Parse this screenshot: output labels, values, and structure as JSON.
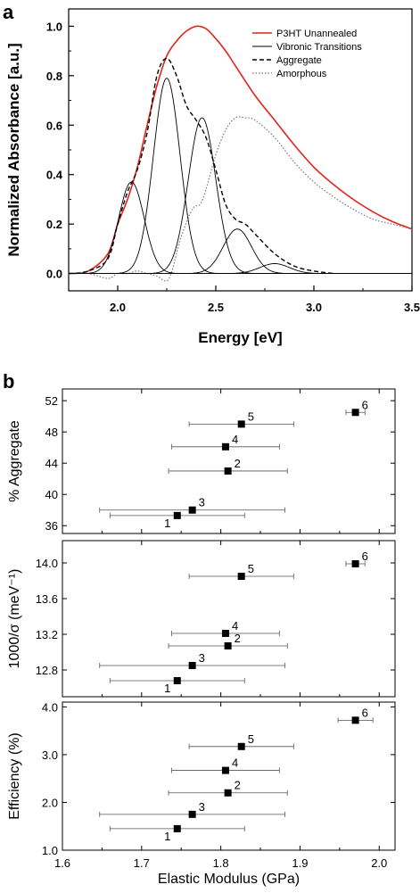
{
  "panel_labels": {
    "a": "a",
    "b": "b"
  },
  "colors": {
    "measured": "#e2231a",
    "ink": "#000000",
    "amorphous": "#777777"
  },
  "chart_data": [
    {
      "id": "a",
      "type": "line",
      "xlabel": "Energy [eV]",
      "ylabel": "Normalized Absorbance [a.u.]",
      "xlim": [
        1.75,
        3.5
      ],
      "ylim": [
        -0.07,
        1.07
      ],
      "xticks": [
        2.0,
        2.5,
        3.0,
        3.5
      ],
      "xtick_labels": [
        "2.0",
        "2.5",
        "3.0",
        "3.5"
      ],
      "yticks": [
        0.0,
        0.2,
        0.4,
        0.6,
        0.8,
        1.0
      ],
      "ytick_labels": [
        "0.0",
        "0.2",
        "0.4",
        "0.6",
        "0.8",
        "1.0"
      ],
      "legend_position": "top-right",
      "legend": [
        {
          "label": "P3HT Unannealed",
          "style": "solid-red"
        },
        {
          "label": "Vibronic Transitions",
          "style": "solid-black"
        },
        {
          "label": "Aggregate",
          "style": "dashed-black"
        },
        {
          "label": "Amorphous",
          "style": "dotted-gray"
        }
      ],
      "series": [
        {
          "name": "P3HT Unannealed",
          "x": [
            1.75,
            1.85,
            1.95,
            2.0,
            2.05,
            2.1,
            2.15,
            2.2,
            2.25,
            2.3,
            2.35,
            2.4,
            2.45,
            2.5,
            2.55,
            2.6,
            2.7,
            2.8,
            2.9,
            3.0,
            3.1,
            3.2,
            3.3,
            3.4,
            3.5
          ],
          "y": [
            0.0,
            0.01,
            0.08,
            0.2,
            0.3,
            0.43,
            0.6,
            0.76,
            0.88,
            0.94,
            0.98,
            1.0,
            0.99,
            0.95,
            0.9,
            0.84,
            0.72,
            0.62,
            0.52,
            0.43,
            0.36,
            0.3,
            0.25,
            0.21,
            0.18
          ]
        },
        {
          "name": "Aggregate",
          "x": [
            1.75,
            1.85,
            1.95,
            2.0,
            2.05,
            2.1,
            2.15,
            2.2,
            2.25,
            2.3,
            2.35,
            2.4,
            2.45,
            2.5,
            2.55,
            2.6,
            2.65,
            2.7,
            2.8,
            2.9,
            3.0,
            3.1
          ],
          "y": [
            0.0,
            0.01,
            0.06,
            0.2,
            0.33,
            0.42,
            0.57,
            0.8,
            0.87,
            0.8,
            0.68,
            0.62,
            0.55,
            0.42,
            0.28,
            0.22,
            0.2,
            0.16,
            0.08,
            0.03,
            0.01,
            0.0
          ]
        },
        {
          "name": "Amorphous",
          "x": [
            1.75,
            1.85,
            1.95,
            2.0,
            2.05,
            2.1,
            2.15,
            2.2,
            2.25,
            2.28,
            2.32,
            2.38,
            2.42,
            2.45,
            2.5,
            2.55,
            2.6,
            2.65,
            2.7,
            2.8,
            2.9,
            3.0,
            3.1,
            3.2,
            3.3,
            3.4,
            3.5
          ],
          "y": [
            0.0,
            0.0,
            -0.02,
            0.0,
            0.0,
            0.01,
            0.0,
            -0.01,
            -0.03,
            0.02,
            0.14,
            0.26,
            0.28,
            0.34,
            0.48,
            0.58,
            0.63,
            0.63,
            0.62,
            0.55,
            0.45,
            0.37,
            0.31,
            0.26,
            0.22,
            0.2,
            0.18
          ]
        },
        {
          "name": "Vibronic Transitions",
          "kind": "gaussians",
          "centers": [
            2.07,
            2.25,
            2.43,
            2.61,
            2.8
          ],
          "amplitudes": [
            0.37,
            0.79,
            0.63,
            0.18,
            0.04
          ],
          "widths": [
            0.065,
            0.068,
            0.07,
            0.072,
            0.075
          ]
        }
      ]
    },
    {
      "id": "b",
      "type": "scatter",
      "shared_xlabel": "Elastic Modulus (GPa)",
      "xlim": [
        1.6,
        2.02
      ],
      "xticks": [
        1.6,
        1.7,
        1.8,
        1.9,
        2.0
      ],
      "xtick_labels": [
        "1.6",
        "1.7",
        "1.8",
        "1.9",
        "2.0"
      ],
      "subplots": [
        {
          "ylabel": "% Aggregate",
          "ylim": [
            35,
            53.5
          ],
          "yticks": [
            36,
            40,
            44,
            48,
            52
          ],
          "ytick_labels": [
            "36",
            "40",
            "44",
            "48",
            "52"
          ],
          "points": [
            {
              "label": "1",
              "x": 1.745,
              "y": 37.3,
              "xerr": 0.085
            },
            {
              "label": "3",
              "x": 1.764,
              "y": 38.0,
              "xerr": 0.117
            },
            {
              "label": "2",
              "x": 1.809,
              "y": 43.0,
              "xerr": 0.075
            },
            {
              "label": "4",
              "x": 1.806,
              "y": 46.1,
              "xerr": 0.068
            },
            {
              "label": "5",
              "x": 1.826,
              "y": 49.0,
              "xerr": 0.066
            },
            {
              "label": "6",
              "x": 1.97,
              "y": 50.5,
              "xerr": 0.012
            }
          ]
        },
        {
          "ylabel": "1000/σ (meV⁻¹)",
          "ylim": [
            12.5,
            14.25
          ],
          "yticks": [
            12.8,
            13.2,
            13.6,
            14.0
          ],
          "ytick_labels": [
            "12.8",
            "13.2",
            "13.6",
            "14.0"
          ],
          "points": [
            {
              "label": "1",
              "x": 1.745,
              "y": 12.68,
              "xerr": 0.085
            },
            {
              "label": "3",
              "x": 1.764,
              "y": 12.85,
              "xerr": 0.117
            },
            {
              "label": "2",
              "x": 1.809,
              "y": 13.07,
              "xerr": 0.075
            },
            {
              "label": "4",
              "x": 1.806,
              "y": 13.21,
              "xerr": 0.068
            },
            {
              "label": "5",
              "x": 1.826,
              "y": 13.85,
              "xerr": 0.066
            },
            {
              "label": "6",
              "x": 1.97,
              "y": 13.99,
              "xerr": 0.012
            }
          ]
        },
        {
          "ylabel": "Efficiency (%)",
          "ylim": [
            1.0,
            4.1
          ],
          "yticks": [
            1.0,
            2.0,
            3.0,
            4.0
          ],
          "ytick_labels": [
            "1.0",
            "2.0",
            "3.0",
            "4.0"
          ],
          "points": [
            {
              "label": "1",
              "x": 1.745,
              "y": 1.45,
              "xerr": 0.085
            },
            {
              "label": "3",
              "x": 1.764,
              "y": 1.75,
              "xerr": 0.117
            },
            {
              "label": "2",
              "x": 1.809,
              "y": 2.2,
              "xerr": 0.075
            },
            {
              "label": "4",
              "x": 1.806,
              "y": 2.67,
              "xerr": 0.068
            },
            {
              "label": "5",
              "x": 1.826,
              "y": 3.17,
              "xerr": 0.066
            },
            {
              "label": "6",
              "x": 1.97,
              "y": 3.72,
              "xerr": 0.022
            }
          ]
        }
      ]
    }
  ]
}
